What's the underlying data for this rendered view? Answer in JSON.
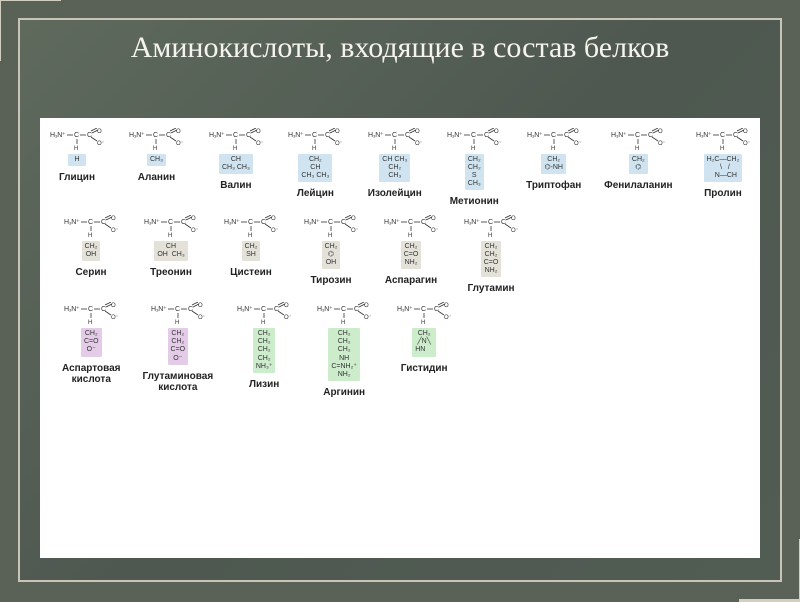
{
  "title": "Аминокислоты, входящие в состав\nбелков",
  "backbone": "H₃N⁺—C—C\n         |    ‖\n         H   O⁻",
  "colors": {
    "nonpolar": "#cfe4f0",
    "polar": "#e4e2d8",
    "acidic": "#e4cce8",
    "basic": "#cdeccc",
    "text": "#333333",
    "sheet_bg": "#ffffff"
  },
  "rows": [
    [
      {
        "name": "Глицин",
        "r": "H",
        "group": "nonpolar"
      },
      {
        "name": "Аланин",
        "r": "CH₃",
        "group": "nonpolar"
      },
      {
        "name": "Валин",
        "r": "CH\nCH₃ CH₃",
        "group": "nonpolar"
      },
      {
        "name": "Лейцин",
        "r": "CH₂\nCH\nCH₃ CH₃",
        "group": "nonpolar"
      },
      {
        "name": "Изолейцин",
        "r": "CH CH₃\nCH₂\nCH₃",
        "group": "nonpolar"
      },
      {
        "name": "Метионин",
        "r": "CH₂\nCH₂\nS\nCH₃",
        "group": "nonpolar"
      },
      {
        "name": "Триптофан",
        "r": "CH₂\n⌬-NH",
        "group": "nonpolar"
      },
      {
        "name": "Фенилаланин",
        "r": "CH₂\n⌬",
        "group": "nonpolar"
      },
      {
        "name": "Пролин",
        "r": "H₂C—CH₂\n  \\   /\n   N—CH",
        "group": "nonpolar"
      }
    ],
    [
      {
        "name": "Серин",
        "r": "CH₂\nOH",
        "group": "polar"
      },
      {
        "name": "Треонин",
        "r": "CH\nOH  CH₃",
        "group": "polar"
      },
      {
        "name": "Цистеин",
        "r": "CH₂\nSH",
        "group": "polar"
      },
      {
        "name": "Тирозин",
        "r": "CH₂\n⌬\nOH",
        "group": "polar"
      },
      {
        "name": "Аспарагин",
        "r": "CH₂\nC=O\nNH₂",
        "group": "polar"
      },
      {
        "name": "Глутамин",
        "r": "CH₂\nCH₂\nC=O\nNH₂",
        "group": "polar"
      }
    ],
    [
      {
        "name": "Аспартовая\nкислота",
        "r": "CH₂\nC=O\nO⁻",
        "group": "acidic"
      },
      {
        "name": "Глутаминовая\nкислота",
        "r": "CH₂\nCH₂\nC=O\nO⁻",
        "group": "acidic"
      },
      {
        "name": "Лизин",
        "r": "CH₂\nCH₂\nCH₂\nCH₂\nNH₃⁺",
        "group": "basic"
      },
      {
        "name": "Аргинин",
        "r": "CH₂\nCH₂\nCH₂\nNH\nC=NH₂⁺\nNH₂",
        "group": "basic"
      },
      {
        "name": "Гистидин",
        "r": "CH₂\n╱N╲\nHN    ",
        "group": "basic"
      }
    ]
  ]
}
